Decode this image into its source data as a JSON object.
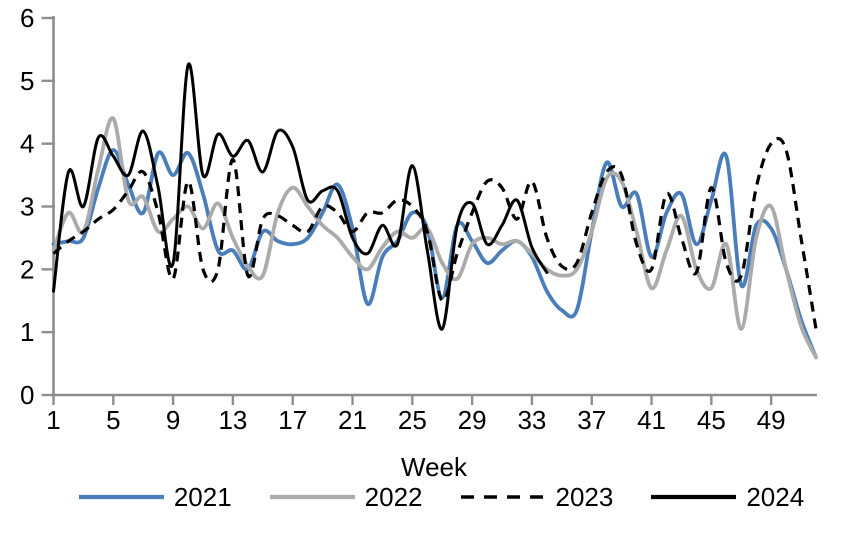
{
  "chart_data": {
    "type": "line",
    "title": "",
    "xlabel": "Week",
    "ylabel": "",
    "ylim": [
      0,
      6
    ],
    "xlim": [
      1,
      52
    ],
    "grid": false,
    "legend_position": "bottom",
    "yticks": [
      0,
      1,
      2,
      3,
      4,
      5,
      6
    ],
    "xticks": [
      1,
      5,
      9,
      13,
      17,
      21,
      25,
      29,
      33,
      37,
      41,
      45,
      49
    ],
    "x": [
      1,
      2,
      3,
      4,
      5,
      6,
      7,
      8,
      9,
      10,
      11,
      12,
      13,
      14,
      15,
      16,
      17,
      18,
      19,
      20,
      21,
      22,
      23,
      24,
      25,
      26,
      27,
      28,
      29,
      30,
      31,
      32,
      33,
      34,
      35,
      36,
      37,
      38,
      39,
      40,
      41,
      42,
      43,
      44,
      45,
      46,
      47,
      48,
      49,
      50,
      51,
      52
    ],
    "series": [
      {
        "name": "2021",
        "color": "#4a7ebb",
        "style": "solid",
        "values": [
          2.4,
          2.45,
          2.5,
          3.3,
          3.9,
          3.35,
          2.9,
          3.85,
          3.5,
          3.85,
          3.2,
          2.3,
          2.3,
          2.0,
          2.6,
          2.45,
          2.4,
          2.5,
          2.9,
          3.35,
          2.65,
          1.45,
          2.2,
          2.45,
          2.9,
          2.65,
          1.55,
          2.7,
          2.45,
          2.1,
          2.3,
          2.45,
          2.2,
          1.65,
          1.35,
          1.35,
          2.6,
          3.7,
          3.0,
          3.2,
          2.2,
          2.9,
          3.2,
          2.4,
          3.1,
          3.8,
          1.75,
          2.7,
          2.65,
          2.0,
          1.2,
          0.6
        ]
      },
      {
        "name": "2022",
        "color": "#ababab",
        "style": "solid",
        "values": [
          2.3,
          2.9,
          2.6,
          3.6,
          4.4,
          3.1,
          3.15,
          2.6,
          2.8,
          3.0,
          2.65,
          3.05,
          2.5,
          2.05,
          1.9,
          2.9,
          3.3,
          3.0,
          2.7,
          2.5,
          2.2,
          2.0,
          2.35,
          2.6,
          2.5,
          2.65,
          2.1,
          1.85,
          2.4,
          2.5,
          2.4,
          2.45,
          2.25,
          2.0,
          1.9,
          2.0,
          2.6,
          3.45,
          3.4,
          2.6,
          1.7,
          2.3,
          2.85,
          2.0,
          1.7,
          2.4,
          1.05,
          2.5,
          3.0,
          2.0,
          1.1,
          0.6
        ]
      },
      {
        "name": "2023",
        "color": "#000000",
        "style": "dashed",
        "values": [
          2.25,
          2.45,
          2.6,
          2.8,
          2.95,
          3.25,
          3.55,
          2.9,
          1.85,
          3.4,
          2.0,
          2.0,
          3.75,
          1.9,
          2.8,
          2.85,
          2.7,
          2.6,
          3.0,
          2.9,
          2.6,
          2.9,
          2.9,
          3.1,
          3.0,
          2.6,
          1.5,
          2.25,
          2.9,
          3.4,
          3.3,
          2.8,
          3.4,
          2.5,
          2.05,
          2.1,
          2.9,
          3.55,
          3.5,
          2.4,
          2.0,
          3.2,
          2.5,
          1.95,
          3.3,
          2.1,
          1.9,
          3.3,
          4.0,
          3.9,
          2.5,
          1.05
        ]
      },
      {
        "name": "2024",
        "color": "#000000",
        "style": "solid",
        "values": [
          1.65,
          3.55,
          3.0,
          4.1,
          3.8,
          3.5,
          4.2,
          3.3,
          2.1,
          5.25,
          3.5,
          4.15,
          3.8,
          4.05,
          3.55,
          4.2,
          3.95,
          3.1,
          3.25,
          3.25,
          2.5,
          2.25,
          2.7,
          2.4,
          3.65,
          2.3,
          1.05,
          2.7,
          3.05,
          2.4,
          2.7,
          3.1,
          2.35,
          1.95
        ]
      }
    ]
  },
  "axes": {
    "axis_color": "#8e8e8e",
    "tick_label_color": "#000000"
  }
}
